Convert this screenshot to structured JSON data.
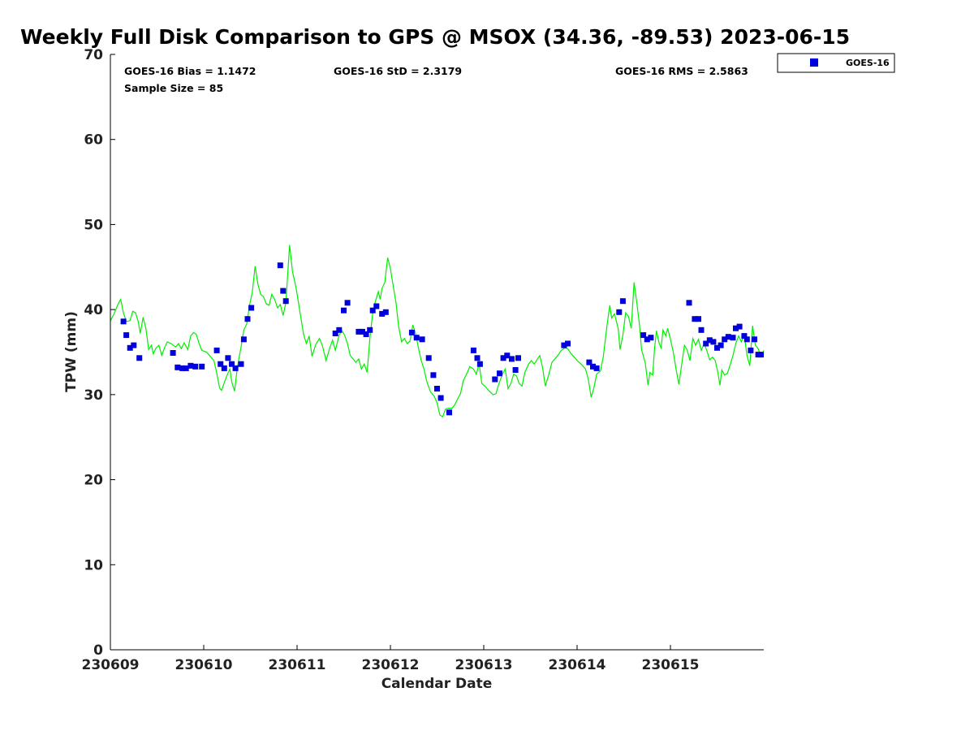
{
  "chart_data": {
    "type": "scatter",
    "title": "Weekly Full Disk Comparison to GPS @ MSOX (34.36, -89.53) 2023-06-15",
    "xlabel": "Calendar Date",
    "ylabel": "TPW (mm)",
    "x_unit": "days",
    "xlim": [
      230609,
      230616
    ],
    "x_ticks": [
      "230609",
      "230610",
      "230611",
      "230612",
      "230613",
      "230614",
      "230615"
    ],
    "ylim": [
      0,
      70
    ],
    "y_ticks": [
      "0",
      "10",
      "20",
      "30",
      "40",
      "50",
      "60",
      "70"
    ],
    "grid": false,
    "legend_position": "top-right (outside plot)",
    "stats": {
      "bias": "GOES-16 Bias = 1.1472",
      "std": "GOES-16 StD = 2.3179",
      "rms": "GOES-16 RMS = 2.5863",
      "sample": "Sample Size = 85"
    },
    "series": [
      {
        "name": "GOES-16",
        "marker": "square",
        "color": "#0000dd",
        "points": [
          [
            0.14,
            38.6
          ],
          [
            0.17,
            37.0
          ],
          [
            0.21,
            35.5
          ],
          [
            0.25,
            35.8
          ],
          [
            0.31,
            34.3
          ],
          [
            0.67,
            34.9
          ],
          [
            0.72,
            33.2
          ],
          [
            0.77,
            33.1
          ],
          [
            0.81,
            33.1
          ],
          [
            0.86,
            33.4
          ],
          [
            0.91,
            33.3
          ],
          [
            0.98,
            33.3
          ],
          [
            1.14,
            35.2
          ],
          [
            1.18,
            33.6
          ],
          [
            1.22,
            33.1
          ],
          [
            1.26,
            34.3
          ],
          [
            1.3,
            33.6
          ],
          [
            1.34,
            33.1
          ],
          [
            1.4,
            33.6
          ],
          [
            1.43,
            36.5
          ],
          [
            1.47,
            38.9
          ],
          [
            1.51,
            40.2
          ],
          [
            1.82,
            45.2
          ],
          [
            1.85,
            42.2
          ],
          [
            1.88,
            41.0
          ],
          [
            2.41,
            37.2
          ],
          [
            2.45,
            37.6
          ],
          [
            2.5,
            39.9
          ],
          [
            2.54,
            40.8
          ],
          [
            2.66,
            37.4
          ],
          [
            2.7,
            37.4
          ],
          [
            2.74,
            37.1
          ],
          [
            2.78,
            37.6
          ],
          [
            2.81,
            39.9
          ],
          [
            2.85,
            40.4
          ],
          [
            2.91,
            39.5
          ],
          [
            2.95,
            39.7
          ],
          [
            3.23,
            37.3
          ],
          [
            3.28,
            36.7
          ],
          [
            3.34,
            36.5
          ],
          [
            3.41,
            34.3
          ],
          [
            3.46,
            32.3
          ],
          [
            3.5,
            30.7
          ],
          [
            3.54,
            29.6
          ],
          [
            3.63,
            27.9
          ],
          [
            3.89,
            35.2
          ],
          [
            3.93,
            34.3
          ],
          [
            3.96,
            33.6
          ],
          [
            4.12,
            31.8
          ],
          [
            4.17,
            32.5
          ],
          [
            4.21,
            34.3
          ],
          [
            4.25,
            34.6
          ],
          [
            4.3,
            34.2
          ],
          [
            4.34,
            32.9
          ],
          [
            4.37,
            34.3
          ],
          [
            4.86,
            35.8
          ],
          [
            4.9,
            36.0
          ],
          [
            5.13,
            33.8
          ],
          [
            5.17,
            33.3
          ],
          [
            5.21,
            33.1
          ],
          [
            5.45,
            39.7
          ],
          [
            5.49,
            41.0
          ],
          [
            5.71,
            37.0
          ],
          [
            5.75,
            36.5
          ],
          [
            5.79,
            36.7
          ],
          [
            6.2,
            40.8
          ],
          [
            6.26,
            38.9
          ],
          [
            6.3,
            38.9
          ],
          [
            6.33,
            37.6
          ],
          [
            6.38,
            36.0
          ],
          [
            6.42,
            36.4
          ],
          [
            6.46,
            36.2
          ],
          [
            6.5,
            35.5
          ],
          [
            6.54,
            35.8
          ],
          [
            6.58,
            36.5
          ],
          [
            6.62,
            36.8
          ],
          [
            6.67,
            36.7
          ],
          [
            6.7,
            37.8
          ],
          [
            6.74,
            38.0
          ],
          [
            6.79,
            36.9
          ],
          [
            6.82,
            36.5
          ],
          [
            6.86,
            35.2
          ],
          [
            6.9,
            36.5
          ],
          [
            6.94,
            34.7
          ],
          [
            6.97,
            34.7
          ]
        ]
      },
      {
        "name": "",
        "marker": "line",
        "color": "#00ee00",
        "points": [
          [
            0.0,
            38.7
          ],
          [
            0.04,
            39.5
          ],
          [
            0.08,
            40.6
          ],
          [
            0.11,
            41.2
          ],
          [
            0.14,
            39.6
          ],
          [
            0.17,
            38.6
          ],
          [
            0.21,
            38.7
          ],
          [
            0.24,
            39.8
          ],
          [
            0.27,
            39.6
          ],
          [
            0.3,
            38.5
          ],
          [
            0.32,
            37.2
          ],
          [
            0.35,
            39.1
          ],
          [
            0.38,
            37.8
          ],
          [
            0.41,
            35.3
          ],
          [
            0.44,
            35.8
          ],
          [
            0.46,
            34.8
          ],
          [
            0.49,
            35.5
          ],
          [
            0.52,
            35.8
          ],
          [
            0.55,
            34.6
          ],
          [
            0.58,
            35.5
          ],
          [
            0.61,
            36.2
          ],
          [
            0.65,
            36.0
          ],
          [
            0.7,
            35.6
          ],
          [
            0.73,
            36.0
          ],
          [
            0.76,
            35.4
          ],
          [
            0.79,
            36.1
          ],
          [
            0.83,
            35.3
          ],
          [
            0.86,
            36.9
          ],
          [
            0.89,
            37.3
          ],
          [
            0.92,
            37.1
          ],
          [
            0.95,
            36.0
          ],
          [
            0.98,
            35.2
          ],
          [
            1.03,
            35.0
          ],
          [
            1.07,
            34.5
          ],
          [
            1.11,
            34.0
          ],
          [
            1.14,
            32.5
          ],
          [
            1.17,
            30.8
          ],
          [
            1.19,
            30.5
          ],
          [
            1.22,
            31.4
          ],
          [
            1.25,
            32.3
          ],
          [
            1.28,
            33.0
          ],
          [
            1.3,
            31.5
          ],
          [
            1.33,
            30.4
          ],
          [
            1.36,
            33.2
          ],
          [
            1.4,
            35.6
          ],
          [
            1.43,
            37.6
          ],
          [
            1.46,
            38.3
          ],
          [
            1.49,
            40.5
          ],
          [
            1.52,
            42.0
          ],
          [
            1.55,
            45.1
          ],
          [
            1.58,
            43.0
          ],
          [
            1.61,
            41.8
          ],
          [
            1.64,
            41.5
          ],
          [
            1.67,
            40.7
          ],
          [
            1.7,
            40.5
          ],
          [
            1.73,
            41.8
          ],
          [
            1.76,
            41.2
          ],
          [
            1.79,
            40.2
          ],
          [
            1.82,
            40.6
          ],
          [
            1.85,
            39.3
          ],
          [
            1.88,
            40.8
          ],
          [
            1.92,
            47.6
          ],
          [
            1.95,
            44.5
          ],
          [
            1.99,
            42.5
          ],
          [
            2.03,
            39.8
          ],
          [
            2.07,
            37.1
          ],
          [
            2.1,
            36.0
          ],
          [
            2.13,
            36.9
          ],
          [
            2.16,
            34.5
          ],
          [
            2.2,
            35.9
          ],
          [
            2.24,
            36.6
          ],
          [
            2.27,
            35.8
          ],
          [
            2.31,
            34.0
          ],
          [
            2.35,
            35.5
          ],
          [
            2.38,
            36.4
          ],
          [
            2.41,
            35.2
          ],
          [
            2.45,
            37.0
          ],
          [
            2.48,
            37.5
          ],
          [
            2.51,
            37.0
          ],
          [
            2.54,
            36.0
          ],
          [
            2.57,
            34.6
          ],
          [
            2.6,
            34.2
          ],
          [
            2.63,
            33.8
          ],
          [
            2.66,
            34.2
          ],
          [
            2.69,
            33.0
          ],
          [
            2.72,
            33.6
          ],
          [
            2.75,
            32.6
          ],
          [
            2.78,
            36.6
          ],
          [
            2.81,
            39.6
          ],
          [
            2.84,
            41.0
          ],
          [
            2.87,
            42.1
          ],
          [
            2.89,
            41.2
          ],
          [
            2.91,
            42.5
          ],
          [
            2.94,
            43.2
          ],
          [
            2.97,
            46.1
          ],
          [
            3.0,
            44.8
          ],
          [
            3.03,
            42.8
          ],
          [
            3.06,
            40.8
          ],
          [
            3.09,
            37.9
          ],
          [
            3.12,
            36.2
          ],
          [
            3.15,
            36.6
          ],
          [
            3.18,
            36.0
          ],
          [
            3.21,
            36.3
          ],
          [
            3.24,
            38.2
          ],
          [
            3.27,
            37.2
          ],
          [
            3.3,
            35.5
          ],
          [
            3.33,
            34.0
          ],
          [
            3.36,
            33.0
          ],
          [
            3.39,
            31.5
          ],
          [
            3.43,
            30.3
          ],
          [
            3.47,
            29.8
          ],
          [
            3.5,
            29.0
          ],
          [
            3.53,
            27.6
          ],
          [
            3.56,
            27.4
          ],
          [
            3.59,
            28.3
          ],
          [
            3.62,
            28.4
          ],
          [
            3.66,
            28.4
          ],
          [
            3.69,
            28.8
          ],
          [
            3.72,
            29.5
          ],
          [
            3.75,
            30.1
          ],
          [
            3.78,
            31.6
          ],
          [
            3.82,
            32.5
          ],
          [
            3.85,
            33.3
          ],
          [
            3.89,
            33.0
          ],
          [
            3.92,
            32.4
          ],
          [
            3.95,
            33.6
          ],
          [
            3.98,
            31.3
          ],
          [
            4.02,
            30.9
          ],
          [
            4.06,
            30.4
          ],
          [
            4.1,
            30.0
          ],
          [
            4.13,
            30.1
          ],
          [
            4.16,
            31.2
          ],
          [
            4.2,
            32.4
          ],
          [
            4.23,
            33.0
          ],
          [
            4.26,
            30.7
          ],
          [
            4.29,
            31.3
          ],
          [
            4.32,
            32.4
          ],
          [
            4.35,
            32.2
          ],
          [
            4.38,
            31.3
          ],
          [
            4.41,
            31.0
          ],
          [
            4.44,
            32.6
          ],
          [
            4.48,
            33.6
          ],
          [
            4.51,
            34.0
          ],
          [
            4.54,
            33.6
          ],
          [
            4.57,
            34.1
          ],
          [
            4.6,
            34.6
          ],
          [
            4.63,
            33.2
          ],
          [
            4.66,
            31.0
          ],
          [
            4.7,
            32.5
          ],
          [
            4.73,
            33.8
          ],
          [
            4.77,
            34.3
          ],
          [
            4.8,
            34.7
          ],
          [
            4.83,
            35.2
          ],
          [
            4.87,
            35.5
          ],
          [
            4.9,
            35.4
          ],
          [
            4.93,
            34.9
          ],
          [
            4.97,
            34.4
          ],
          [
            5.01,
            33.9
          ],
          [
            5.05,
            33.5
          ],
          [
            5.09,
            33.0
          ],
          [
            5.12,
            31.8
          ],
          [
            5.15,
            29.7
          ],
          [
            5.18,
            30.8
          ],
          [
            5.21,
            32.4
          ],
          [
            5.25,
            32.8
          ],
          [
            5.28,
            34.4
          ],
          [
            5.32,
            38.1
          ],
          [
            5.35,
            40.5
          ],
          [
            5.37,
            39.0
          ],
          [
            5.4,
            39.5
          ],
          [
            5.44,
            37.8
          ],
          [
            5.46,
            35.3
          ],
          [
            5.49,
            37.0
          ],
          [
            5.52,
            39.6
          ],
          [
            5.55,
            39.2
          ],
          [
            5.58,
            37.8
          ],
          [
            5.61,
            43.2
          ],
          [
            5.64,
            40.8
          ],
          [
            5.67,
            38.1
          ],
          [
            5.69,
            35.3
          ],
          [
            5.73,
            33.7
          ],
          [
            5.76,
            31.1
          ],
          [
            5.78,
            32.6
          ],
          [
            5.81,
            32.3
          ],
          [
            5.83,
            35.5
          ],
          [
            5.85,
            37.5
          ],
          [
            5.88,
            36.0
          ],
          [
            5.9,
            35.5
          ],
          [
            5.92,
            37.6
          ],
          [
            5.95,
            36.9
          ],
          [
            5.97,
            37.8
          ],
          [
            6.0,
            36.5
          ],
          [
            6.03,
            35.0
          ],
          [
            6.06,
            33.0
          ],
          [
            6.09,
            31.2
          ],
          [
            6.12,
            33.5
          ],
          [
            6.15,
            35.8
          ],
          [
            6.18,
            35.2
          ],
          [
            6.21,
            34.0
          ],
          [
            6.24,
            36.6
          ],
          [
            6.27,
            35.8
          ],
          [
            6.3,
            36.5
          ],
          [
            6.33,
            35.2
          ],
          [
            6.36,
            36.0
          ],
          [
            6.39,
            35.2
          ],
          [
            6.42,
            34.1
          ],
          [
            6.45,
            34.4
          ],
          [
            6.48,
            34.0
          ],
          [
            6.51,
            32.5
          ],
          [
            6.53,
            31.1
          ],
          [
            6.55,
            32.9
          ],
          [
            6.58,
            32.3
          ],
          [
            6.61,
            32.5
          ],
          [
            6.64,
            33.5
          ],
          [
            6.67,
            34.6
          ],
          [
            6.7,
            36.0
          ],
          [
            6.73,
            36.9
          ],
          [
            6.76,
            36.2
          ],
          [
            6.79,
            37.1
          ],
          [
            6.82,
            34.6
          ],
          [
            6.85,
            33.4
          ],
          [
            6.88,
            38.1
          ],
          [
            6.91,
            35.8
          ],
          [
            6.94,
            35.4
          ],
          [
            6.97,
            34.5
          ],
          [
            7.0,
            35.2
          ]
        ]
      }
    ]
  }
}
